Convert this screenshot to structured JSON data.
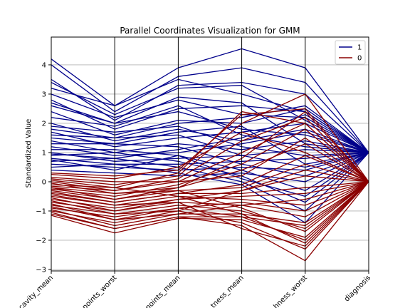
{
  "chart_data": {
    "type": "parallel_coordinates",
    "title": "Parallel Coordinates Visualization for GMM",
    "ylabel": "Standardized Value",
    "xlabel": "",
    "axes": [
      "concavity_mean",
      "concave points_worst",
      "concave points_mean",
      "compactness_mean",
      "smoothness_worst",
      "diagnosis"
    ],
    "axes_visible_labels": [
      "cavity_mean",
      "points_worst",
      "points_mean",
      "tness_mean",
      "hness_worst",
      "diagnosis"
    ],
    "ylim": [
      -3.05,
      4.95
    ],
    "yticks": [
      -3,
      -2,
      -1,
      0,
      1,
      2,
      3,
      4
    ],
    "grid": true,
    "legend": {
      "placement": "top-right",
      "entries": [
        {
          "label": "1",
          "color": "#00008b"
        },
        {
          "label": "0",
          "color": "#8b0000"
        }
      ]
    },
    "series": [
      {
        "name": "1",
        "color": "#00008b",
        "lines": [
          [
            4.2,
            2.6,
            3.9,
            4.55,
            3.9,
            1.0
          ],
          [
            4.0,
            2.4,
            3.6,
            3.9,
            3.4,
            1.0
          ],
          [
            3.5,
            2.1,
            3.3,
            3.4,
            3.0,
            1.0
          ],
          [
            3.2,
            2.6,
            3.5,
            3.0,
            2.4,
            1.0
          ],
          [
            3.0,
            2.2,
            2.8,
            2.3,
            2.2,
            1.0
          ],
          [
            2.8,
            1.8,
            2.5,
            2.6,
            2.4,
            1.0
          ],
          [
            2.6,
            2.0,
            2.4,
            1.8,
            1.6,
            1.0
          ],
          [
            2.4,
            1.6,
            2.1,
            2.0,
            2.5,
            1.0
          ],
          [
            2.2,
            1.9,
            2.6,
            1.6,
            1.2,
            1.0
          ],
          [
            2.0,
            1.4,
            1.8,
            1.4,
            1.8,
            1.0
          ],
          [
            1.9,
            1.7,
            1.9,
            1.2,
            0.9,
            1.0
          ],
          [
            1.7,
            1.2,
            1.5,
            1.7,
            2.0,
            1.0
          ],
          [
            1.6,
            1.5,
            1.6,
            0.9,
            0.5,
            1.0
          ],
          [
            1.4,
            1.0,
            1.3,
            1.1,
            1.4,
            1.0
          ],
          [
            1.3,
            1.3,
            1.2,
            0.6,
            0.2,
            1.0
          ],
          [
            1.2,
            0.9,
            1.0,
            1.3,
            1.7,
            1.0
          ],
          [
            1.1,
            1.1,
            0.9,
            0.4,
            -0.3,
            1.0
          ],
          [
            1.0,
            0.7,
            0.8,
            0.9,
            1.1,
            1.0
          ],
          [
            0.9,
            1.0,
            0.7,
            0.2,
            -0.7,
            1.0
          ],
          [
            0.8,
            0.6,
            0.6,
            0.7,
            0.8,
            1.0
          ],
          [
            0.7,
            0.8,
            0.5,
            0.0,
            -1.0,
            1.0
          ],
          [
            0.6,
            0.5,
            0.4,
            0.5,
            0.4,
            1.0
          ],
          [
            0.5,
            0.6,
            0.3,
            -0.1,
            -1.4,
            1.0
          ],
          [
            0.4,
            0.3,
            0.2,
            0.3,
            0.0,
            1.0
          ],
          [
            3.4,
            2.3,
            3.2,
            3.3,
            2.1,
            1.0
          ],
          [
            2.7,
            2.0,
            2.9,
            2.7,
            1.3,
            1.0
          ],
          [
            1.8,
            1.5,
            2.0,
            2.2,
            2.6,
            1.0
          ],
          [
            1.5,
            1.3,
            1.7,
            1.9,
            0.6,
            1.0
          ],
          [
            0.95,
            0.8,
            1.1,
            1.5,
            2.3,
            1.0
          ],
          [
            0.75,
            0.4,
            0.9,
            0.1,
            -0.5,
            1.0
          ]
        ]
      },
      {
        "name": "0",
        "color": "#8b0000",
        "lines": [
          [
            0.3,
            0.2,
            0.4,
            2.3,
            2.5,
            0.0
          ],
          [
            0.1,
            -0.1,
            0.2,
            2.0,
            3.0,
            0.0
          ],
          [
            0.0,
            -0.3,
            0.0,
            1.0,
            2.0,
            0.0
          ],
          [
            -0.1,
            -0.2,
            0.3,
            2.4,
            2.0,
            0.0
          ],
          [
            -0.2,
            -0.4,
            -0.2,
            0.4,
            1.3,
            0.0
          ],
          [
            -0.3,
            -0.6,
            -0.3,
            -0.2,
            0.6,
            0.0
          ],
          [
            -0.4,
            -0.7,
            -0.4,
            -0.4,
            -0.2,
            0.0
          ],
          [
            -0.5,
            -0.8,
            -0.5,
            -0.6,
            -0.8,
            0.0
          ],
          [
            -0.6,
            -0.9,
            -0.6,
            -0.3,
            0.2,
            0.0
          ],
          [
            -0.7,
            -1.0,
            -0.7,
            -0.8,
            -1.2,
            0.0
          ],
          [
            -0.8,
            -1.1,
            -0.8,
            -1.0,
            -1.6,
            0.0
          ],
          [
            -0.9,
            -1.2,
            -0.9,
            -1.2,
            -2.0,
            0.0
          ],
          [
            -1.0,
            -1.4,
            -1.0,
            -1.4,
            -2.3,
            0.0
          ],
          [
            -1.1,
            -1.6,
            -1.2,
            -1.5,
            -2.7,
            0.0
          ],
          [
            -1.15,
            -1.75,
            -1.25,
            -1.3,
            -1.9,
            0.0
          ],
          [
            -0.95,
            -1.5,
            -1.1,
            -1.1,
            -1.4,
            0.0
          ],
          [
            -0.75,
            -1.3,
            -0.9,
            -0.7,
            -1.0,
            0.0
          ],
          [
            -0.55,
            -1.0,
            -0.6,
            -0.5,
            -0.4,
            0.0
          ],
          [
            -0.35,
            -0.7,
            -0.4,
            -0.1,
            0.9,
            0.0
          ],
          [
            -0.25,
            -0.5,
            -0.1,
            0.6,
            1.8,
            0.0
          ],
          [
            -0.15,
            -0.3,
            0.1,
            1.4,
            2.2,
            0.0
          ],
          [
            -0.05,
            -0.4,
            -0.3,
            -0.9,
            -1.7,
            0.0
          ],
          [
            0.05,
            -0.2,
            -0.5,
            -1.1,
            -2.1,
            0.0
          ],
          [
            0.15,
            0.0,
            0.0,
            0.2,
            1.5,
            0.0
          ],
          [
            -0.45,
            -0.8,
            -0.7,
            -1.6,
            -2.2,
            0.0
          ],
          [
            -0.65,
            -1.1,
            -1.0,
            -0.3,
            0.4,
            0.0
          ],
          [
            -0.85,
            -1.3,
            -1.1,
            -0.8,
            -0.6,
            0.0
          ],
          [
            -1.05,
            -1.6,
            -1.2,
            -1.2,
            -1.5,
            0.0
          ],
          [
            0.25,
            0.1,
            0.5,
            1.7,
            1.0,
            0.0
          ],
          [
            -0.2,
            -0.6,
            -0.2,
            0.8,
            2.4,
            0.0
          ]
        ]
      }
    ]
  }
}
